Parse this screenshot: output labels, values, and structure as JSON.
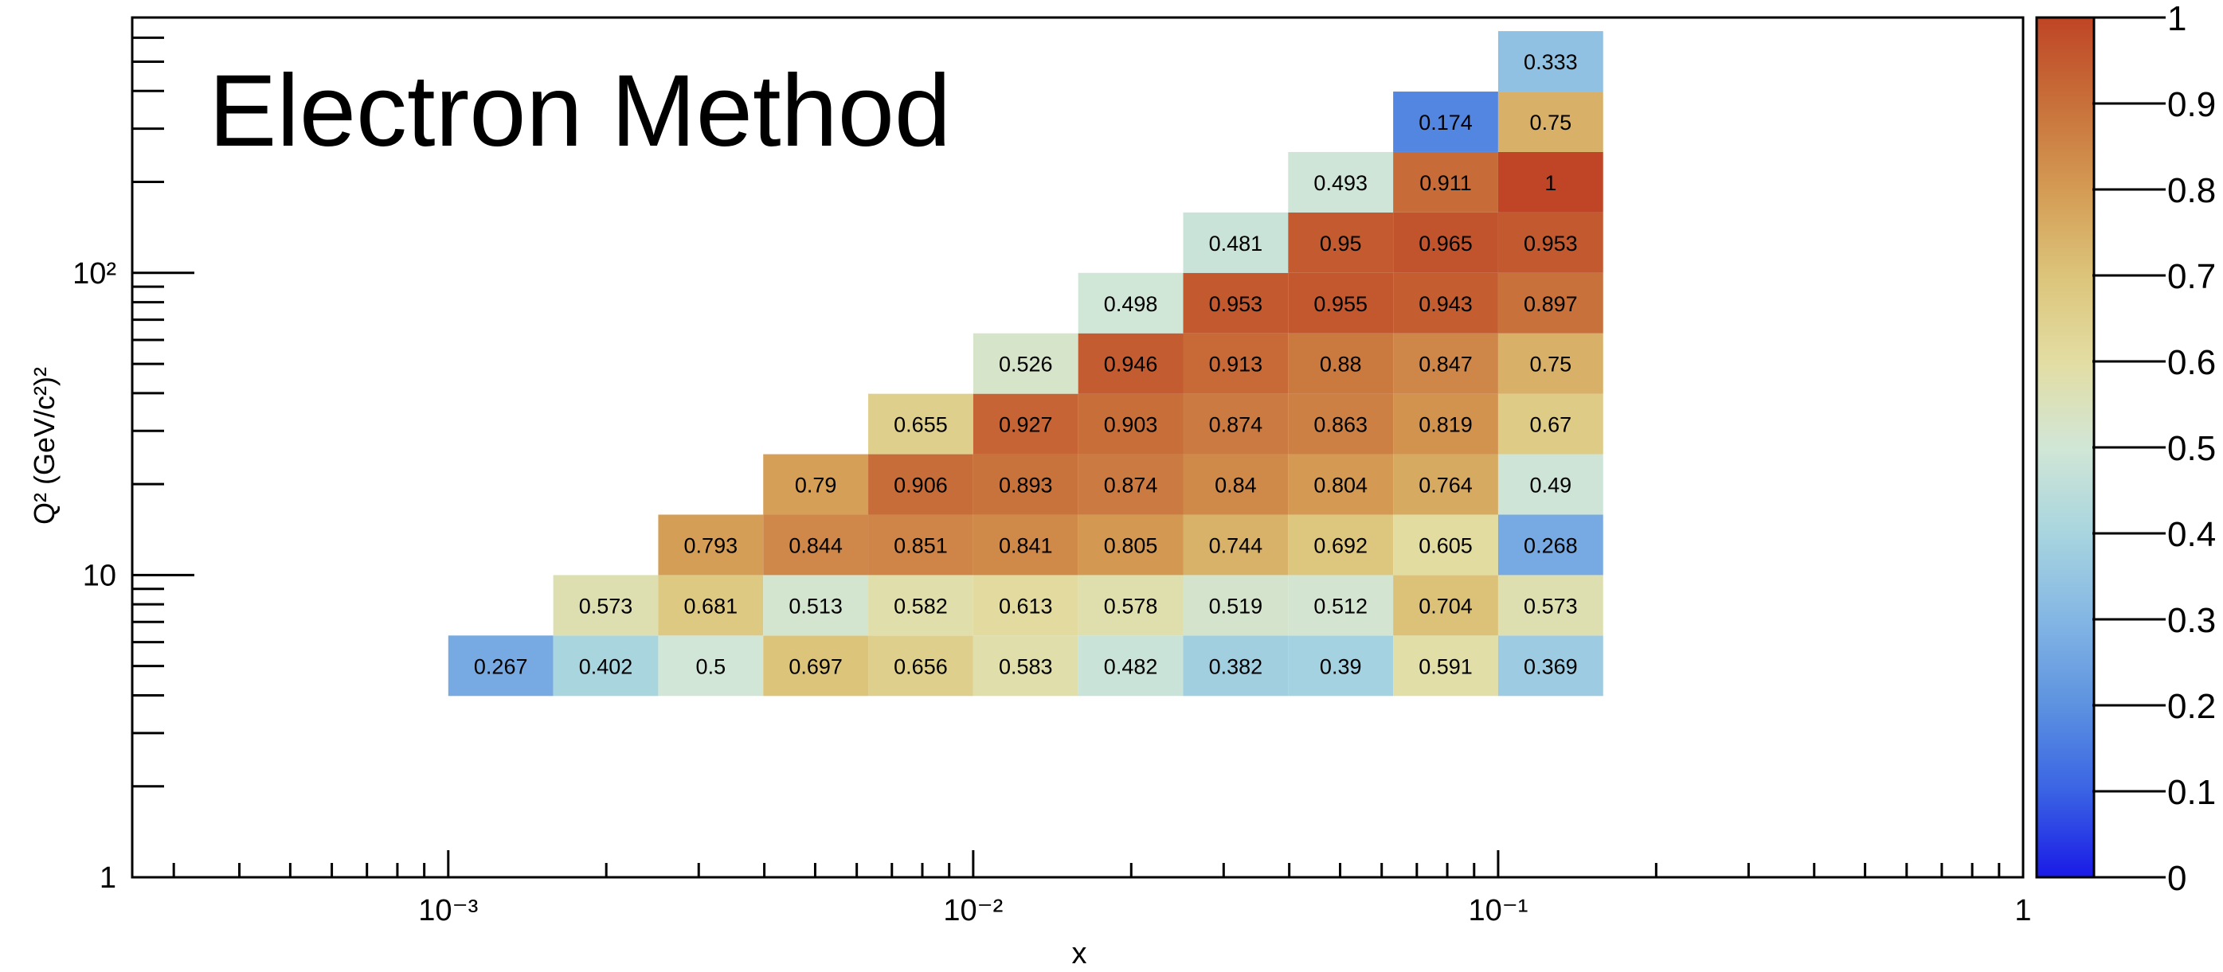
{
  "chart_data": {
    "type": "heatmap",
    "title": "Electron Method",
    "xlabel": "x",
    "ylabel": "Q² (GeV/c²)²",
    "x_scale": "log",
    "y_scale": "log",
    "xlim": [
      0.00025,
      1
    ],
    "ylim": [
      1,
      700
    ],
    "zlim": [
      0,
      1
    ],
    "x_bin_edges": [
      0.001,
      0.0015849,
      0.0025119,
      0.0039811,
      0.0063096,
      0.01,
      0.015849,
      0.025119,
      0.039811,
      0.063096,
      0.1,
      0.15849
    ],
    "y_bin_edges": [
      3.98,
      6.31,
      10.0,
      15.85,
      25.12,
      39.81,
      63.1,
      100.0,
      158.5,
      251.2,
      398.1,
      631.0
    ],
    "x_tick_labels": [
      "10⁻³",
      "10⁻²",
      "10⁻¹",
      "1"
    ],
    "x_tick_values": [
      0.001,
      0.01,
      0.1,
      1
    ],
    "y_tick_labels": [
      "1",
      "10",
      "10²"
    ],
    "y_tick_values": [
      1,
      10,
      100
    ],
    "z_tick_labels": [
      "0",
      "0.1",
      "0.2",
      "0.3",
      "0.4",
      "0.5",
      "0.6",
      "0.7",
      "0.8",
      "0.9",
      "1"
    ],
    "z_tick_values": [
      0,
      0.1,
      0.2,
      0.3,
      0.4,
      0.5,
      0.6,
      0.7,
      0.8,
      0.9,
      1
    ],
    "cells": [
      {
        "xi": 0,
        "yi": 0,
        "value": 0.267,
        "label": "0.267"
      },
      {
        "xi": 1,
        "yi": 0,
        "value": 0.402,
        "label": "0.402"
      },
      {
        "xi": 2,
        "yi": 0,
        "value": 0.5,
        "label": "0.5"
      },
      {
        "xi": 3,
        "yi": 0,
        "value": 0.697,
        "label": "0.697"
      },
      {
        "xi": 4,
        "yi": 0,
        "value": 0.656,
        "label": "0.656"
      },
      {
        "xi": 5,
        "yi": 0,
        "value": 0.583,
        "label": "0.583"
      },
      {
        "xi": 6,
        "yi": 0,
        "value": 0.482,
        "label": "0.482"
      },
      {
        "xi": 7,
        "yi": 0,
        "value": 0.382,
        "label": "0.382"
      },
      {
        "xi": 8,
        "yi": 0,
        "value": 0.39,
        "label": "0.39"
      },
      {
        "xi": 9,
        "yi": 0,
        "value": 0.591,
        "label": "0.591"
      },
      {
        "xi": 10,
        "yi": 0,
        "value": 0.369,
        "label": "0.369"
      },
      {
        "xi": 1,
        "yi": 1,
        "value": 0.573,
        "label": "0.573"
      },
      {
        "xi": 2,
        "yi": 1,
        "value": 0.681,
        "label": "0.681"
      },
      {
        "xi": 3,
        "yi": 1,
        "value": 0.513,
        "label": "0.513"
      },
      {
        "xi": 4,
        "yi": 1,
        "value": 0.582,
        "label": "0.582"
      },
      {
        "xi": 5,
        "yi": 1,
        "value": 0.613,
        "label": "0.613"
      },
      {
        "xi": 6,
        "yi": 1,
        "value": 0.578,
        "label": "0.578"
      },
      {
        "xi": 7,
        "yi": 1,
        "value": 0.519,
        "label": "0.519"
      },
      {
        "xi": 8,
        "yi": 1,
        "value": 0.512,
        "label": "0.512"
      },
      {
        "xi": 9,
        "yi": 1,
        "value": 0.704,
        "label": "0.704"
      },
      {
        "xi": 10,
        "yi": 1,
        "value": 0.573,
        "label": "0.573"
      },
      {
        "xi": 2,
        "yi": 2,
        "value": 0.793,
        "label": "0.793"
      },
      {
        "xi": 3,
        "yi": 2,
        "value": 0.844,
        "label": "0.844"
      },
      {
        "xi": 4,
        "yi": 2,
        "value": 0.851,
        "label": "0.851"
      },
      {
        "xi": 5,
        "yi": 2,
        "value": 0.841,
        "label": "0.841"
      },
      {
        "xi": 6,
        "yi": 2,
        "value": 0.805,
        "label": "0.805"
      },
      {
        "xi": 7,
        "yi": 2,
        "value": 0.744,
        "label": "0.744"
      },
      {
        "xi": 8,
        "yi": 2,
        "value": 0.692,
        "label": "0.692"
      },
      {
        "xi": 9,
        "yi": 2,
        "value": 0.605,
        "label": "0.605"
      },
      {
        "xi": 10,
        "yi": 2,
        "value": 0.268,
        "label": "0.268"
      },
      {
        "xi": 3,
        "yi": 3,
        "value": 0.79,
        "label": "0.79"
      },
      {
        "xi": 4,
        "yi": 3,
        "value": 0.906,
        "label": "0.906"
      },
      {
        "xi": 5,
        "yi": 3,
        "value": 0.893,
        "label": "0.893"
      },
      {
        "xi": 6,
        "yi": 3,
        "value": 0.874,
        "label": "0.874"
      },
      {
        "xi": 7,
        "yi": 3,
        "value": 0.84,
        "label": "0.84"
      },
      {
        "xi": 8,
        "yi": 3,
        "value": 0.804,
        "label": "0.804"
      },
      {
        "xi": 9,
        "yi": 3,
        "value": 0.764,
        "label": "0.764"
      },
      {
        "xi": 10,
        "yi": 3,
        "value": 0.49,
        "label": "0.49"
      },
      {
        "xi": 4,
        "yi": 4,
        "value": 0.655,
        "label": "0.655"
      },
      {
        "xi": 5,
        "yi": 4,
        "value": 0.927,
        "label": "0.927"
      },
      {
        "xi": 6,
        "yi": 4,
        "value": 0.903,
        "label": "0.903"
      },
      {
        "xi": 7,
        "yi": 4,
        "value": 0.874,
        "label": "0.874"
      },
      {
        "xi": 8,
        "yi": 4,
        "value": 0.863,
        "label": "0.863"
      },
      {
        "xi": 9,
        "yi": 4,
        "value": 0.819,
        "label": "0.819"
      },
      {
        "xi": 10,
        "yi": 4,
        "value": 0.67,
        "label": "0.67"
      },
      {
        "xi": 5,
        "yi": 5,
        "value": 0.526,
        "label": "0.526"
      },
      {
        "xi": 6,
        "yi": 5,
        "value": 0.946,
        "label": "0.946"
      },
      {
        "xi": 7,
        "yi": 5,
        "value": 0.913,
        "label": "0.913"
      },
      {
        "xi": 8,
        "yi": 5,
        "value": 0.88,
        "label": "0.88"
      },
      {
        "xi": 9,
        "yi": 5,
        "value": 0.847,
        "label": "0.847"
      },
      {
        "xi": 10,
        "yi": 5,
        "value": 0.75,
        "label": "0.75"
      },
      {
        "xi": 6,
        "yi": 6,
        "value": 0.498,
        "label": "0.498"
      },
      {
        "xi": 7,
        "yi": 6,
        "value": 0.953,
        "label": "0.953"
      },
      {
        "xi": 8,
        "yi": 6,
        "value": 0.955,
        "label": "0.955"
      },
      {
        "xi": 9,
        "yi": 6,
        "value": 0.943,
        "label": "0.943"
      },
      {
        "xi": 10,
        "yi": 6,
        "value": 0.897,
        "label": "0.897"
      },
      {
        "xi": 7,
        "yi": 7,
        "value": 0.481,
        "label": "0.481"
      },
      {
        "xi": 8,
        "yi": 7,
        "value": 0.95,
        "label": "0.95"
      },
      {
        "xi": 9,
        "yi": 7,
        "value": 0.965,
        "label": "0.965"
      },
      {
        "xi": 10,
        "yi": 7,
        "value": 0.953,
        "label": "0.953"
      },
      {
        "xi": 8,
        "yi": 8,
        "value": 0.493,
        "label": "0.493"
      },
      {
        "xi": 9,
        "yi": 8,
        "value": 0.911,
        "label": "0.911"
      },
      {
        "xi": 10,
        "yi": 8,
        "value": 1,
        "label": "1"
      },
      {
        "xi": 9,
        "yi": 9,
        "value": 0.174,
        "label": "0.174"
      },
      {
        "xi": 10,
        "yi": 9,
        "value": 0.75,
        "label": "0.75"
      },
      {
        "xi": 10,
        "yi": 10,
        "value": 0.333,
        "label": "0.333"
      }
    ],
    "colormap": [
      {
        "z": 0.0,
        "color": "#1a1ae6"
      },
      {
        "z": 0.1,
        "color": "#3a63e4"
      },
      {
        "z": 0.2,
        "color": "#5c92e0"
      },
      {
        "z": 0.3,
        "color": "#84b6e4"
      },
      {
        "z": 0.4,
        "color": "#a8d5df"
      },
      {
        "z": 0.5,
        "color": "#d1e6d6"
      },
      {
        "z": 0.6,
        "color": "#e3dda3"
      },
      {
        "z": 0.7,
        "color": "#dcc47a"
      },
      {
        "z": 0.8,
        "color": "#d49b54"
      },
      {
        "z": 0.9,
        "color": "#c8703a"
      },
      {
        "z": 1.0,
        "color": "#bf4526"
      }
    ],
    "grid": false,
    "legend": "colorbar-right"
  }
}
